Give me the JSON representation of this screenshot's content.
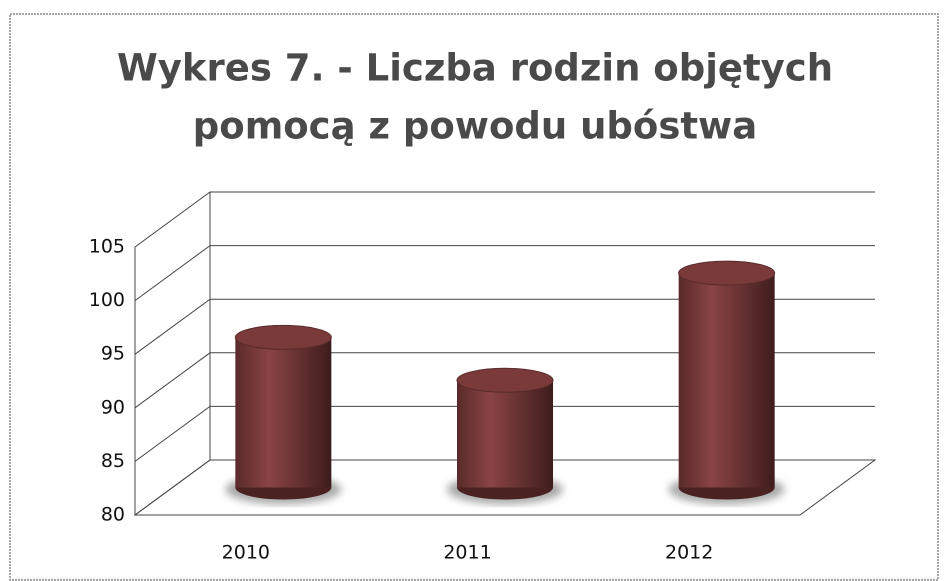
{
  "chart_data": {
    "type": "bar",
    "title": [
      "Wykres 7. - Liczba rodzin objętych",
      "pomocą z powodu ubóstwa"
    ],
    "categories": [
      "2010",
      "2011",
      "2012"
    ],
    "values": [
      94,
      90,
      100
    ],
    "color": "#7a3a3a",
    "ylim": [
      80,
      105
    ],
    "yticks": [
      80,
      85,
      90,
      95,
      100,
      105
    ],
    "grid": true
  }
}
